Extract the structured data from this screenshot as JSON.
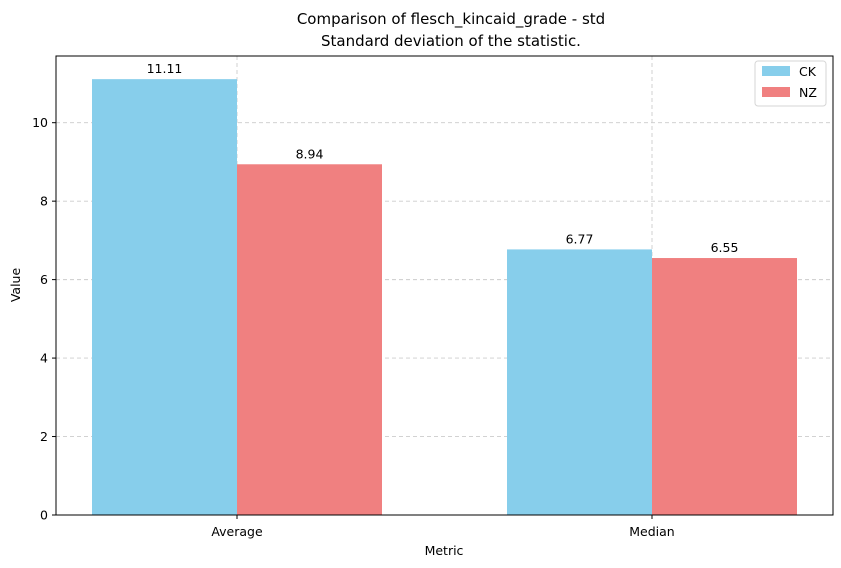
{
  "chart_data": {
    "type": "bar",
    "title": "Comparison of flesch_kincaid_grade - std",
    "subtitle": "Standard deviation of the statistic.",
    "xlabel": "Metric",
    "ylabel": "Value",
    "categories": [
      "Average",
      "Median"
    ],
    "series": [
      {
        "name": "CK",
        "values": [
          11.11,
          6.77
        ],
        "color": "#87ceeb"
      },
      {
        "name": "NZ",
        "values": [
          8.94,
          6.55
        ],
        "color": "#f08080"
      }
    ],
    "data_labels": [
      [
        "11.11",
        "6.77"
      ],
      [
        "8.94",
        "6.55"
      ]
    ],
    "ylim": [
      0,
      11.7
    ],
    "yticks": [
      "0",
      "2",
      "4",
      "6",
      "8",
      "10"
    ],
    "grid": true,
    "legend_position": "top-right"
  }
}
